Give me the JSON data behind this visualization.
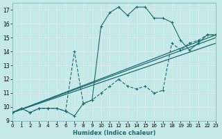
{
  "xlabel": "Humidex (Indice chaleur)",
  "bg_color": "#c5e8e8",
  "line_color": "#1a6b6b",
  "grid_color": "#d8ecec",
  "xlim": [
    0,
    23
  ],
  "ylim": [
    9,
    17.5
  ],
  "xticks": [
    0,
    1,
    2,
    3,
    4,
    5,
    6,
    7,
    8,
    9,
    10,
    11,
    12,
    13,
    14,
    15,
    16,
    17,
    18,
    19,
    20,
    21,
    22,
    23
  ],
  "yticks": [
    9,
    10,
    11,
    12,
    13,
    14,
    15,
    16,
    17
  ],
  "curve1_x": [
    0,
    1,
    2,
    3,
    4,
    5,
    6,
    7,
    8,
    9,
    10,
    11,
    12,
    13,
    14,
    15,
    16,
    17,
    18,
    19,
    20,
    21,
    22,
    23
  ],
  "curve1_y": [
    9.6,
    9.9,
    9.6,
    9.9,
    9.9,
    9.9,
    9.7,
    9.35,
    10.25,
    10.5,
    15.8,
    16.8,
    17.2,
    16.6,
    17.2,
    17.2,
    16.4,
    16.4,
    16.1,
    14.8,
    14.1,
    14.6,
    15.2,
    15.2
  ],
  "curve2_x": [
    0,
    1,
    2,
    3,
    4,
    5,
    6,
    7,
    8,
    9,
    10,
    11,
    12,
    13,
    14,
    15,
    16,
    17,
    18,
    19,
    20,
    21,
    22,
    23
  ],
  "curve2_y": [
    9.6,
    9.9,
    9.6,
    9.9,
    9.9,
    9.9,
    9.7,
    14.0,
    10.25,
    10.5,
    11.0,
    11.5,
    12.0,
    11.5,
    11.3,
    11.5,
    11.0,
    11.2,
    14.6,
    14.1,
    14.6,
    14.8,
    15.2,
    15.2
  ],
  "line3_x": [
    0,
    23
  ],
  "line3_y": [
    9.6,
    15.2
  ],
  "line4_x": [
    0,
    23
  ],
  "line4_y": [
    9.6,
    15.0
  ],
  "line5_x": [
    0,
    23
  ],
  "line5_y": [
    9.6,
    14.6
  ]
}
